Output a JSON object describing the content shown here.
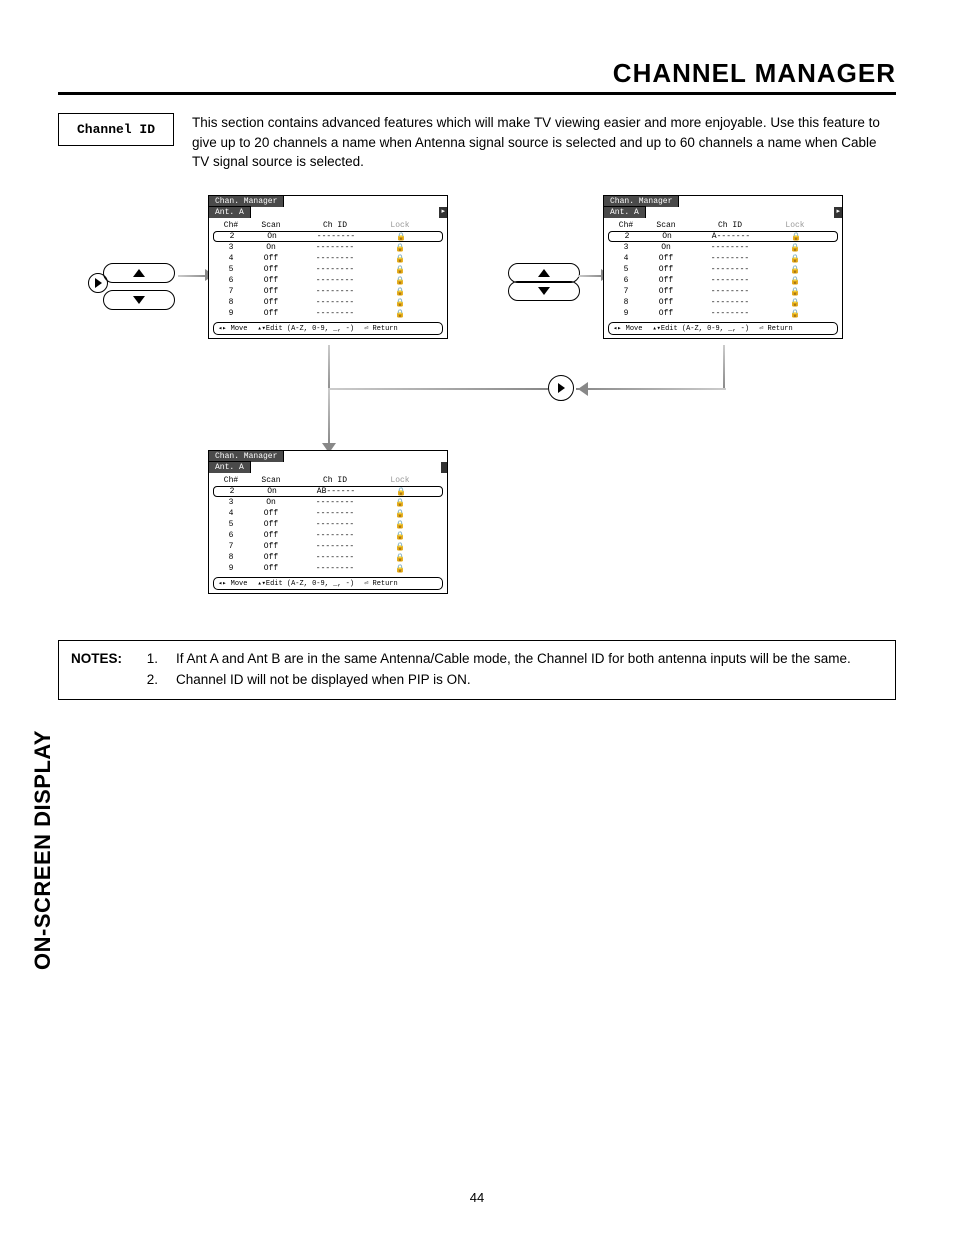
{
  "header_title": "CHANNEL MANAGER",
  "section_label": "Channel ID",
  "intro": "This section contains advanced features which will make TV viewing easier and more enjoyable.  Use this feature to give up to 20 channels a name when Antenna signal source is selected and up to 60 channels a name when Cable TV signal source is selected.",
  "panel": {
    "tab1": "Chan. Manager",
    "tab2": "Ant. A",
    "cols": {
      "ch": "Ch#",
      "scan": "Scan",
      "id": "Ch ID",
      "lock": "Lock"
    },
    "row2": {
      "ch": "2",
      "scan": "On",
      "id_blank": "--------",
      "id_a": "A-------",
      "id_ab": "AB------"
    },
    "row3": {
      "ch": "3",
      "scan": "On",
      "id": "--------"
    },
    "row4": {
      "ch": "4",
      "scan": "Off",
      "id": "--------"
    },
    "row5": {
      "ch": "5",
      "scan": "Off",
      "id": "--------"
    },
    "row6": {
      "ch": "6",
      "scan": "Off",
      "id": "--------"
    },
    "row7": {
      "ch": "7",
      "scan": "Off",
      "id": "--------"
    },
    "row8": {
      "ch": "8",
      "scan": "Off",
      "id": "--------"
    },
    "row9": {
      "ch": "9",
      "scan": "Off",
      "id": "--------"
    },
    "footer_move": "◂▸ Move",
    "footer_edit": "▴▾Edit (A-Z, 0-9, _, -)",
    "footer_return": "⏎ Return"
  },
  "notes": {
    "label": "NOTES:",
    "n1_num": "1.",
    "n1": "If Ant A and Ant B are in the same Antenna/Cable mode, the Channel ID for both antenna inputs will be the same.",
    "n2_num": "2.",
    "n2": "Channel ID will not be displayed when PIP is ON."
  },
  "side_label": "ON-SCREEN DISPLAY",
  "page_number": "44",
  "lock_glyph": "🔒"
}
